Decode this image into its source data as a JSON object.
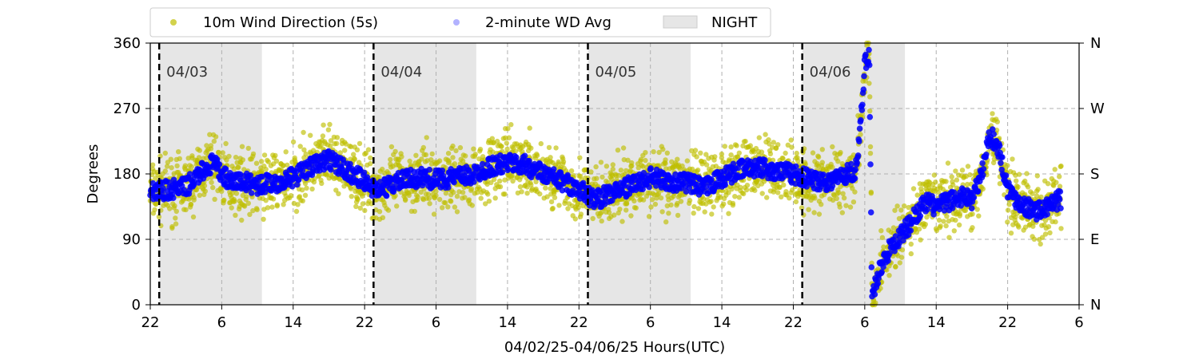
{
  "chart_data": {
    "type": "scatter",
    "xlabel": "04/02/25-04/06/25  Hours(UTC)",
    "ylabel": "Degrees",
    "ylim": [
      0,
      360
    ],
    "xlim_hours": [
      0,
      104
    ],
    "x_tick_labels": [
      "22",
      "6",
      "14",
      "22",
      "6",
      "14",
      "22",
      "6",
      "14",
      "22",
      "6",
      "14",
      "22",
      "6"
    ],
    "y_ticks": [
      0,
      90,
      180,
      270,
      360
    ],
    "y_tick_labels": [
      "0",
      "90",
      "180",
      "270",
      "360"
    ],
    "right_axis_labels": [
      "N",
      "E",
      "S",
      "W",
      "N"
    ],
    "grid": true,
    "legend": {
      "placement": "top-center",
      "entries": [
        {
          "label": "10m Wind Direction (5s)",
          "color": "#bfbf00",
          "marker": "dot"
        },
        {
          "label": "2-minute WD Avg",
          "color": "#0000ff",
          "marker": "dot-faded"
        },
        {
          "label": "NIGHT",
          "color": "#e6e6e6",
          "marker": "patch"
        }
      ]
    },
    "night_periods_hours": [
      [
        1,
        12.5
      ],
      [
        25,
        36.5
      ],
      [
        49,
        60.5
      ],
      [
        73,
        84.5
      ]
    ],
    "day_separators_hours": [
      1,
      25,
      49,
      73
    ],
    "day_labels": [
      {
        "text": "04/03",
        "hour": 1
      },
      {
        "text": "04/04",
        "hour": 25
      },
      {
        "text": "04/05",
        "hour": 49
      },
      {
        "text": "04/06",
        "hour": 73
      }
    ],
    "series": [
      {
        "name": "2-minute WD Avg",
        "color": "#0000ff",
        "points": [
          [
            0,
            155
          ],
          [
            2,
            158
          ],
          [
            4,
            162
          ],
          [
            6,
            185
          ],
          [
            7,
            195
          ],
          [
            8,
            180
          ],
          [
            9,
            168
          ],
          [
            10,
            170
          ],
          [
            12,
            165
          ],
          [
            14,
            168
          ],
          [
            16,
            175
          ],
          [
            18,
            190
          ],
          [
            19,
            195
          ],
          [
            20,
            200
          ],
          [
            22,
            185
          ],
          [
            24,
            170
          ],
          [
            25,
            160
          ],
          [
            26,
            160
          ],
          [
            28,
            170
          ],
          [
            30,
            175
          ],
          [
            32,
            172
          ],
          [
            34,
            175
          ],
          [
            36,
            178
          ],
          [
            38,
            190
          ],
          [
            40,
            195
          ],
          [
            42,
            192
          ],
          [
            44,
            180
          ],
          [
            46,
            170
          ],
          [
            48,
            160
          ],
          [
            49,
            150
          ],
          [
            50,
            145
          ],
          [
            52,
            155
          ],
          [
            54,
            165
          ],
          [
            56,
            175
          ],
          [
            58,
            170
          ],
          [
            60,
            168
          ],
          [
            62,
            160
          ],
          [
            64,
            175
          ],
          [
            66,
            185
          ],
          [
            68,
            190
          ],
          [
            70,
            185
          ],
          [
            72,
            180
          ],
          [
            74,
            172
          ],
          [
            76,
            170
          ],
          [
            77,
            175
          ],
          [
            78,
            180
          ],
          [
            79,
            185
          ],
          [
            79.5,
            240
          ],
          [
            80,
            330
          ],
          [
            80.5,
            350
          ],
          [
            80.8,
            10
          ],
          [
            81,
            20
          ],
          [
            82,
            60
          ],
          [
            83,
            80
          ],
          [
            84,
            95
          ],
          [
            85,
            110
          ],
          [
            86,
            130
          ],
          [
            87,
            140
          ],
          [
            88,
            135
          ],
          [
            89,
            140
          ],
          [
            90,
            145
          ],
          [
            91,
            150
          ],
          [
            92,
            145
          ],
          [
            93,
            175
          ],
          [
            94,
            235
          ],
          [
            95,
            215
          ],
          [
            96,
            160
          ],
          [
            97,
            145
          ],
          [
            98,
            135
          ],
          [
            99,
            130
          ],
          [
            100,
            130
          ],
          [
            101,
            140
          ],
          [
            102,
            145
          ]
        ]
      },
      {
        "name": "10m Wind Direction (5s)",
        "color": "#bfbf00",
        "spread_degrees": 55,
        "extent_hours": [
          0,
          102
        ]
      }
    ]
  }
}
